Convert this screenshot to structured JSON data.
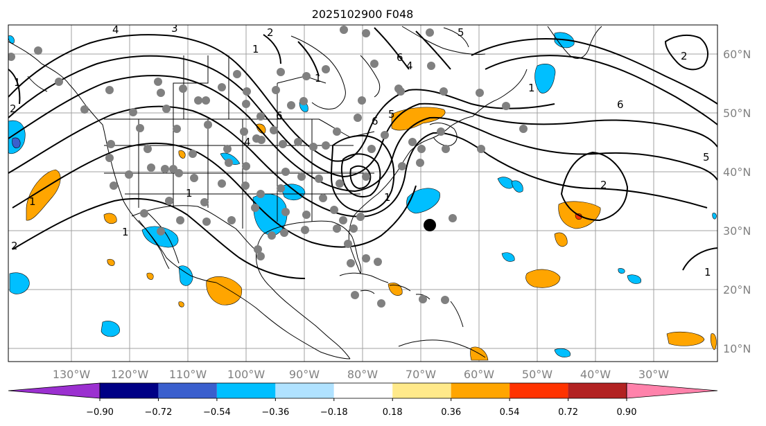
{
  "title": "2025102900 F048",
  "map": {
    "lon_ticks": [
      "130°W",
      "120°W",
      "110°W",
      "100°W",
      "90°W",
      "80°W",
      "70°W",
      "60°W",
      "50°W",
      "40°W",
      "30°W"
    ],
    "lat_ticks": [
      "60°N",
      "50°N",
      "40°N",
      "30°N",
      "20°N",
      "10°N"
    ],
    "contour_labels": [
      "4",
      "3",
      "2",
      "1",
      "1",
      "2",
      "1",
      "2",
      "1",
      "4",
      "6",
      "6",
      "5",
      "4",
      "1",
      "6",
      "5",
      "1",
      "1",
      "2",
      "6",
      "5",
      "1",
      "1",
      "2"
    ]
  },
  "colorbar": {
    "ticks": [
      "−0.90",
      "−0.72",
      "−0.54",
      "−0.36",
      "−0.18",
      "0.18",
      "0.36",
      "0.54",
      "0.72",
      "0.90"
    ],
    "colors": {
      "under": "#9b30d0",
      "bins": [
        "#000085",
        "#3a5fcd",
        "#00bfff",
        "#b0e2ff",
        "#ffffff",
        "#ffe98a",
        "#ffa500",
        "#ff3300",
        "#b22222"
      ],
      "over": "#ff82ab"
    }
  },
  "colors": {
    "land_line": "#000000",
    "grid": "#a0a0a0",
    "station_dot": "#808080",
    "marker": "#000000",
    "negative_fill": "#00bfff",
    "positive_fill": "#ffa500"
  }
}
